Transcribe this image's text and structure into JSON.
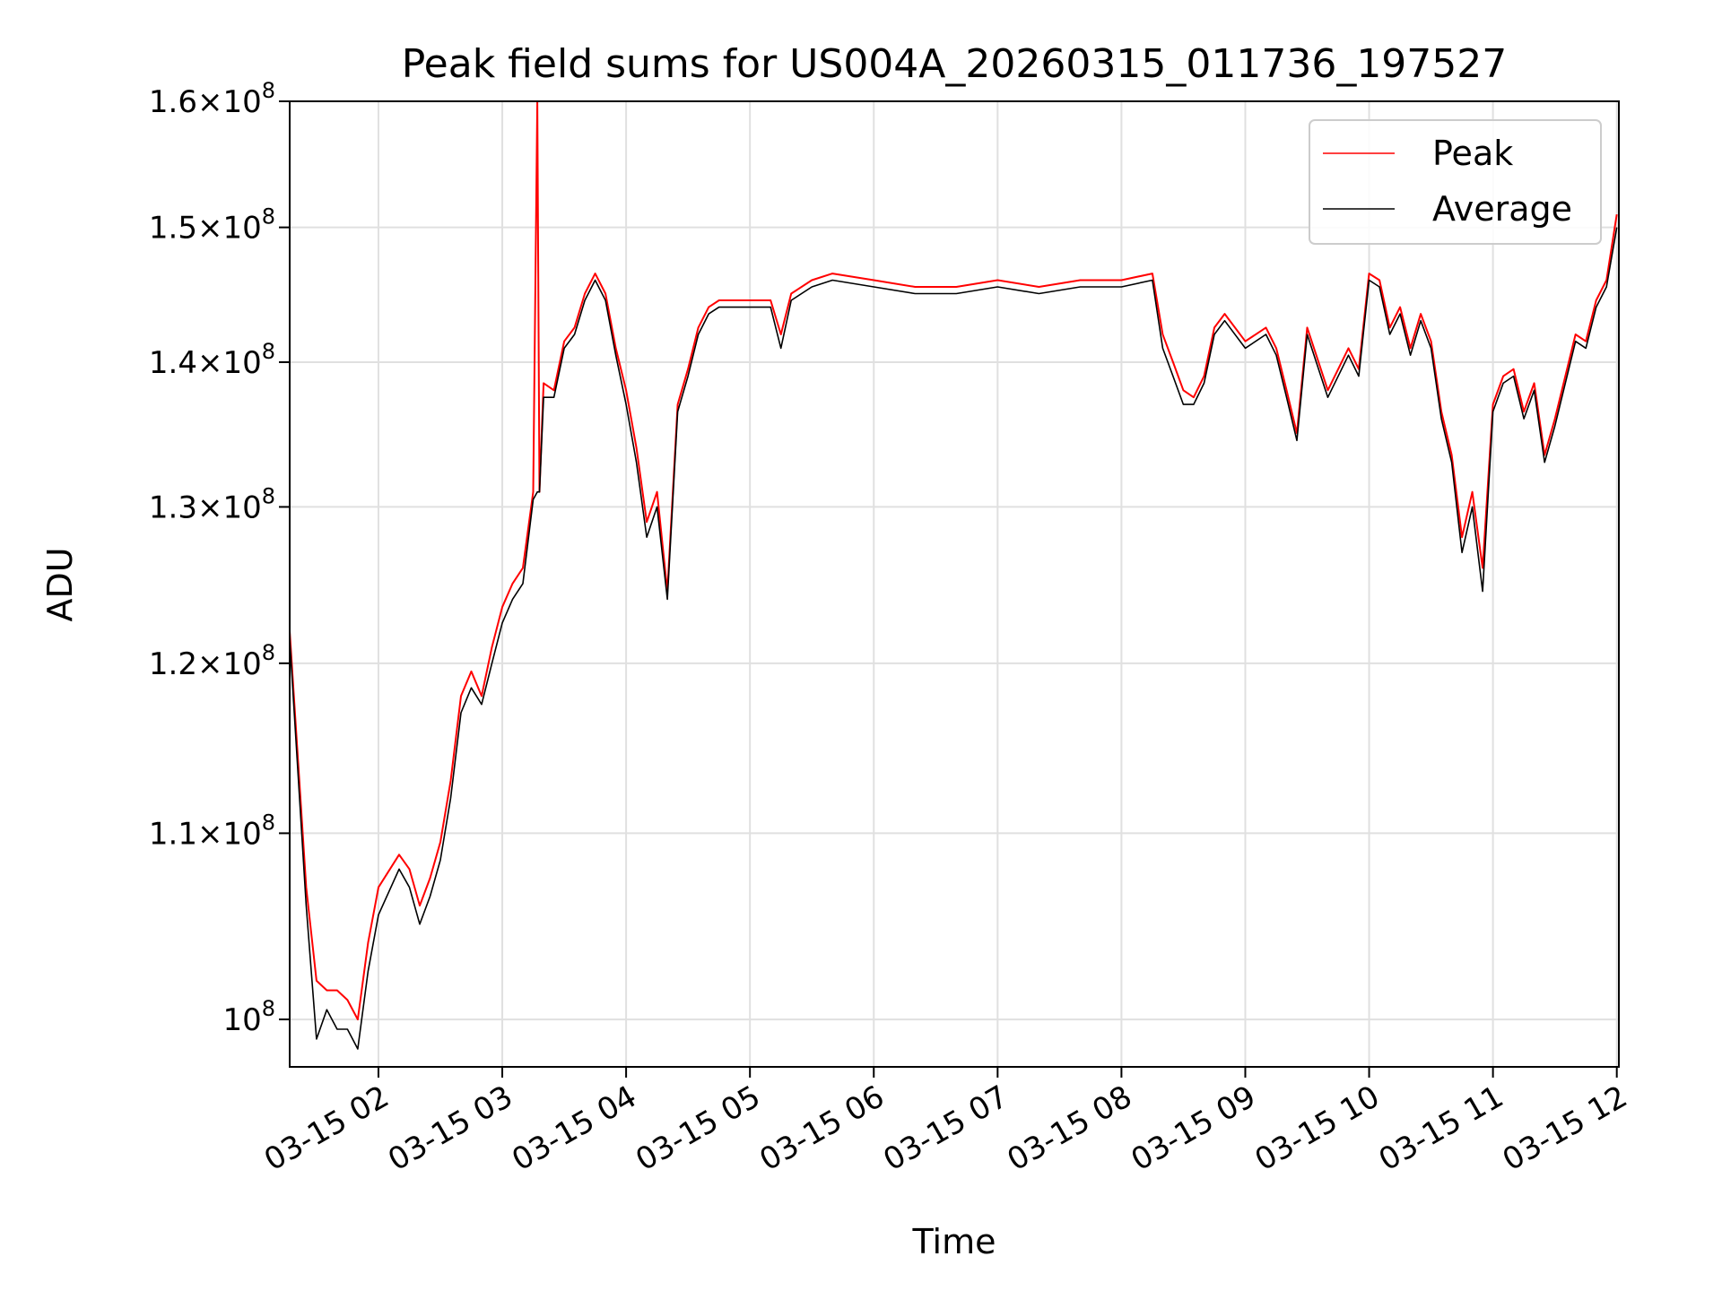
{
  "chart_data": {
    "type": "line",
    "title": "Peak field sums for US004A_20260315_011736_197527",
    "xlabel": "Time",
    "ylabel": "ADU",
    "yscale": "log",
    "grid": true,
    "legend_position": "top-right",
    "x_ticks": [
      "03-15 02",
      "03-15 03",
      "03-15 04",
      "03-15 05",
      "03-15 06",
      "03-15 07",
      "03-15 08",
      "03-15 09",
      "03-15 10",
      "03-15 11",
      "03-15 12"
    ],
    "y_ticks": [
      {
        "value": 100000000,
        "mantissa": "",
        "exp": "8"
      },
      {
        "value": 110000000,
        "mantissa": "1.1",
        "exp": "8"
      },
      {
        "value": 120000000,
        "mantissa": "1.2",
        "exp": "8"
      },
      {
        "value": 130000000,
        "mantissa": "1.3",
        "exp": "8"
      },
      {
        "value": 140000000,
        "mantissa": "1.4",
        "exp": "8"
      },
      {
        "value": 150000000,
        "mantissa": "1.5",
        "exp": "8"
      },
      {
        "value": 160000000,
        "mantissa": "1.6",
        "exp": "8"
      }
    ],
    "xlim": [
      "2026-03-15 01:17",
      "2026-03-15 12:01"
    ],
    "ylim": [
      97600000,
      160000000
    ],
    "series": [
      {
        "name": "Peak",
        "color": "#ff0000",
        "x": [
          "01:17",
          "01:25",
          "01:30",
          "01:35",
          "01:40",
          "01:45",
          "01:50",
          "01:55",
          "02:00",
          "02:10",
          "02:15",
          "02:20",
          "02:25",
          "02:30",
          "02:35",
          "02:40",
          "02:45",
          "02:50",
          "02:55",
          "03:00",
          "03:05",
          "03:10",
          "03:15",
          "03:17",
          "03:18",
          "03:20",
          "03:25",
          "03:30",
          "03:35",
          "03:40",
          "03:45",
          "03:50",
          "03:55",
          "04:00",
          "04:05",
          "04:10",
          "04:15",
          "04:20",
          "04:25",
          "04:30",
          "04:35",
          "04:40",
          "04:45",
          "04:50",
          "05:00",
          "05:10",
          "05:15",
          "05:20",
          "05:30",
          "05:40",
          "06:00",
          "06:20",
          "06:40",
          "07:00",
          "07:20",
          "07:40",
          "08:00",
          "08:15",
          "08:20",
          "08:25",
          "08:30",
          "08:35",
          "08:40",
          "08:45",
          "08:50",
          "09:00",
          "09:10",
          "09:15",
          "09:20",
          "09:25",
          "09:30",
          "09:40",
          "09:50",
          "09:55",
          "10:00",
          "10:05",
          "10:10",
          "10:15",
          "10:20",
          "10:25",
          "10:30",
          "10:35",
          "10:40",
          "10:45",
          "10:50",
          "10:55",
          "11:00",
          "11:05",
          "11:10",
          "11:15",
          "11:20",
          "11:25",
          "11:30",
          "11:40",
          "11:45",
          "11:50",
          "11:55",
          "12:00"
        ],
        "values": [
          122000000,
          107000000,
          102000000,
          101500000,
          101500000,
          101000000,
          100000000,
          104000000,
          107000000,
          108800000,
          108000000,
          106000000,
          107500000,
          109500000,
          113000000,
          118000000,
          119500000,
          118000000,
          121000000,
          123500000,
          125000000,
          126000000,
          131000000,
          160000000,
          131000000,
          138500000,
          138000000,
          141500000,
          142500000,
          145000000,
          146500000,
          145000000,
          141000000,
          138000000,
          134000000,
          129000000,
          131000000,
          124500000,
          137000000,
          139500000,
          142500000,
          144000000,
          144500000,
          144500000,
          144500000,
          144500000,
          142000000,
          145000000,
          146000000,
          146500000,
          146000000,
          145500000,
          145500000,
          146000000,
          145500000,
          146000000,
          146000000,
          146500000,
          142000000,
          140000000,
          138000000,
          137500000,
          139000000,
          142500000,
          143500000,
          141500000,
          142500000,
          141000000,
          138000000,
          135000000,
          142500000,
          138000000,
          141000000,
          139500000,
          146500000,
          146000000,
          142500000,
          144000000,
          141000000,
          143500000,
          141500000,
          136500000,
          133500000,
          128000000,
          131000000,
          126000000,
          137000000,
          139000000,
          139500000,
          136500000,
          138500000,
          133500000,
          136000000,
          142000000,
          141500000,
          144500000,
          146000000,
          151000000
        ]
      },
      {
        "name": "Average",
        "color": "#000000",
        "x": [
          "01:17",
          "01:25",
          "01:30",
          "01:35",
          "01:40",
          "01:45",
          "01:50",
          "01:55",
          "02:00",
          "02:10",
          "02:15",
          "02:20",
          "02:25",
          "02:30",
          "02:35",
          "02:40",
          "02:45",
          "02:50",
          "02:55",
          "03:00",
          "03:05",
          "03:10",
          "03:15",
          "03:17",
          "03:18",
          "03:20",
          "03:25",
          "03:30",
          "03:35",
          "03:40",
          "03:45",
          "03:50",
          "03:55",
          "04:00",
          "04:05",
          "04:10",
          "04:15",
          "04:20",
          "04:25",
          "04:30",
          "04:35",
          "04:40",
          "04:45",
          "04:50",
          "05:00",
          "05:10",
          "05:15",
          "05:20",
          "05:30",
          "05:40",
          "06:00",
          "06:20",
          "06:40",
          "07:00",
          "07:20",
          "07:40",
          "08:00",
          "08:15",
          "08:20",
          "08:25",
          "08:30",
          "08:35",
          "08:40",
          "08:45",
          "08:50",
          "09:00",
          "09:10",
          "09:15",
          "09:20",
          "09:25",
          "09:30",
          "09:40",
          "09:50",
          "09:55",
          "10:00",
          "10:05",
          "10:10",
          "10:15",
          "10:20",
          "10:25",
          "10:30",
          "10:35",
          "10:40",
          "10:45",
          "10:50",
          "10:55",
          "11:00",
          "11:05",
          "11:10",
          "11:15",
          "11:20",
          "11:25",
          "11:30",
          "11:40",
          "11:45",
          "11:50",
          "11:55",
          "12:00"
        ],
        "values": [
          121500000,
          106000000,
          99000000,
          100500000,
          99500000,
          99500000,
          98500000,
          102500000,
          105500000,
          108000000,
          107000000,
          105000000,
          106500000,
          108500000,
          112000000,
          117000000,
          118500000,
          117500000,
          120000000,
          122500000,
          124000000,
          125000000,
          130500000,
          131000000,
          131000000,
          137500000,
          137500000,
          141000000,
          142000000,
          144500000,
          146000000,
          144500000,
          140500000,
          137000000,
          133000000,
          128000000,
          130000000,
          124000000,
          136500000,
          139000000,
          142000000,
          143500000,
          144000000,
          144000000,
          144000000,
          144000000,
          141000000,
          144500000,
          145500000,
          146000000,
          145500000,
          145000000,
          145000000,
          145500000,
          145000000,
          145500000,
          145500000,
          146000000,
          141000000,
          139000000,
          137000000,
          137000000,
          138500000,
          142000000,
          143000000,
          141000000,
          142000000,
          140500000,
          137500000,
          134500000,
          142000000,
          137500000,
          140500000,
          139000000,
          146000000,
          145500000,
          142000000,
          143500000,
          140500000,
          143000000,
          141000000,
          136000000,
          133000000,
          127000000,
          130000000,
          124500000,
          136500000,
          138500000,
          139000000,
          136000000,
          138000000,
          133000000,
          135500000,
          141500000,
          141000000,
          144000000,
          145500000,
          150000000
        ]
      }
    ]
  }
}
